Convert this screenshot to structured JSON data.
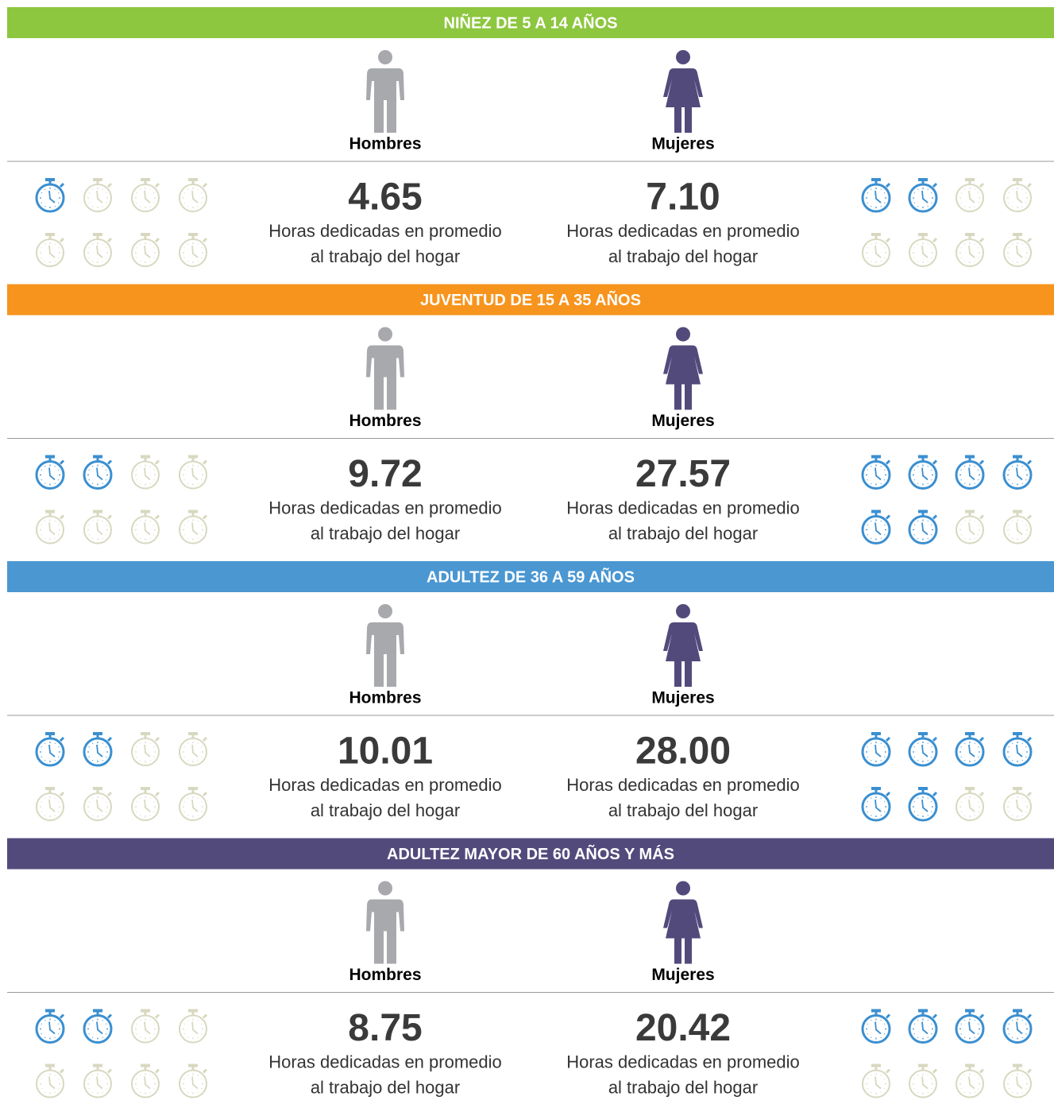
{
  "icons_total": 8,
  "sections": [
    {
      "title": "NIÑEZ DE 5 A 14 AÑOS",
      "color": "#8dc63f",
      "men": {
        "label": "Hombres",
        "value": "4.65",
        "caption_1": "Horas dedicadas en promedio",
        "caption_2": "al trabajo del hogar",
        "icons_filled": 1
      },
      "women": {
        "label": "Mujeres",
        "value": "7.10",
        "caption_1": "Horas dedicadas en promedio",
        "caption_2": "al trabajo del hogar",
        "icons_filled": 2
      }
    },
    {
      "title": "JUVENTUD DE 15 A 35 AÑOS",
      "color": "#f7941d",
      "men": {
        "label": "Hombres",
        "value": "9.72",
        "caption_1": "Horas dedicadas en promedio",
        "caption_2": "al trabajo del hogar",
        "icons_filled": 2
      },
      "women": {
        "label": "Mujeres",
        "value": "27.57",
        "caption_1": "Horas dedicadas en promedio",
        "caption_2": "al trabajo del hogar",
        "icons_filled": 6
      }
    },
    {
      "title": "ADULTEZ DE 36 A 59 AÑOS",
      "color": "#4a97d2",
      "men": {
        "label": "Hombres",
        "value": "10.01",
        "caption_1": "Horas dedicadas en promedio",
        "caption_2": "al trabajo del hogar",
        "icons_filled": 2
      },
      "women": {
        "label": "Mujeres",
        "value": "28.00",
        "caption_1": "Horas dedicadas en promedio",
        "caption_2": "al trabajo del hogar",
        "icons_filled": 6
      }
    },
    {
      "title": "ADULTEZ MAYOR DE 60 AÑOS Y MÁS",
      "color": "#534a7c",
      "men": {
        "label": "Hombres",
        "value": "8.75",
        "caption_1": "Horas dedicadas en promedio",
        "caption_2": "al trabajo del hogar",
        "icons_filled": 2
      },
      "women": {
        "label": "Mujeres",
        "value": "20.42",
        "caption_1": "Horas dedicadas en promedio",
        "caption_2": "al trabajo del hogar",
        "icons_filled": 4
      }
    }
  ]
}
